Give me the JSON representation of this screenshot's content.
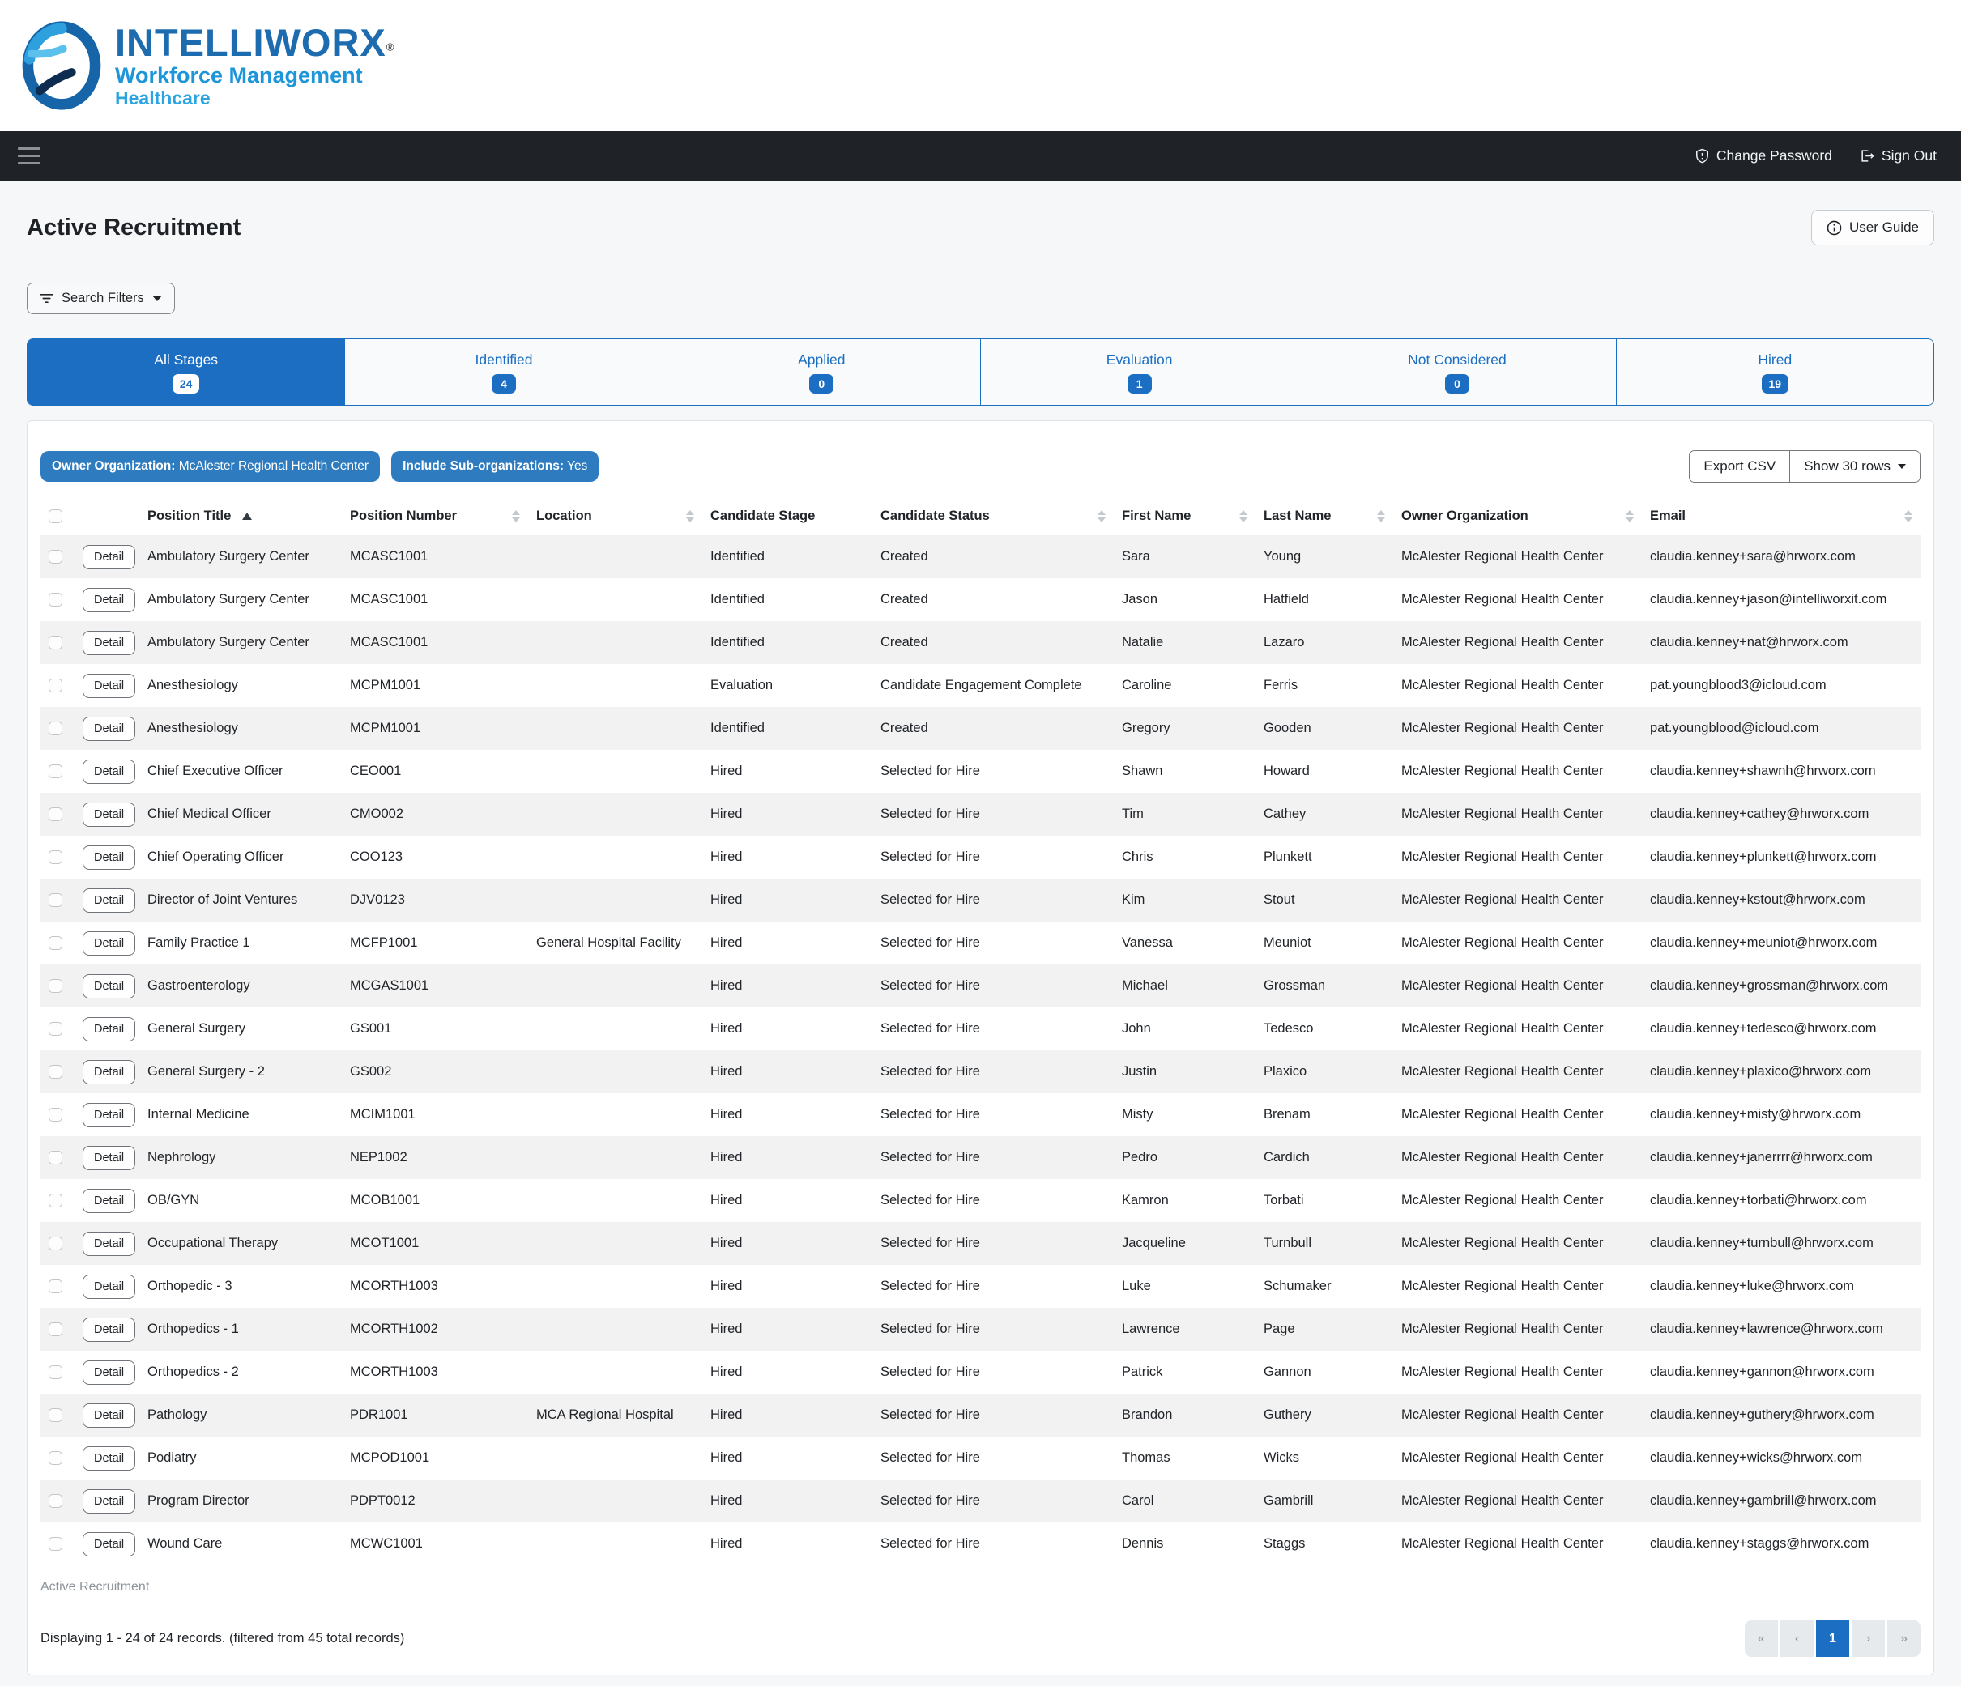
{
  "brand": {
    "name": "INTELLIWORX",
    "registered": "®",
    "tagline": "Workforce Management",
    "sub_tagline": "Healthcare"
  },
  "navbar": {
    "change_password": "Change Password",
    "sign_out": "Sign Out"
  },
  "page": {
    "title": "Active Recruitment",
    "user_guide": "User Guide",
    "search_filters": "Search Filters"
  },
  "tabs": [
    {
      "label": "All Stages",
      "count": "24",
      "active": true
    },
    {
      "label": "Identified",
      "count": "4",
      "active": false
    },
    {
      "label": "Applied",
      "count": "0",
      "active": false
    },
    {
      "label": "Evaluation",
      "count": "1",
      "active": false
    },
    {
      "label": "Not Considered",
      "count": "0",
      "active": false
    },
    {
      "label": "Hired",
      "count": "19",
      "active": false
    }
  ],
  "filters": [
    {
      "label": "Owner Organization",
      "value": "McAlester Regional Health Center"
    },
    {
      "label": "Include Sub-organizations",
      "value": "Yes"
    }
  ],
  "toolbar": {
    "export_csv": "Export CSV",
    "show_rows": "Show 30 rows"
  },
  "table": {
    "detail_label": "Detail",
    "columns": [
      {
        "label": "Position Title",
        "sort": "asc"
      },
      {
        "label": "Position Number",
        "sort": "both"
      },
      {
        "label": "Location",
        "sort": "both"
      },
      {
        "label": "Candidate Stage",
        "sort": "none"
      },
      {
        "label": "Candidate Status",
        "sort": "both"
      },
      {
        "label": "First Name",
        "sort": "both"
      },
      {
        "label": "Last Name",
        "sort": "both"
      },
      {
        "label": "Owner Organization",
        "sort": "both"
      },
      {
        "label": "Email",
        "sort": "both"
      }
    ],
    "rows": [
      {
        "position_title": "Ambulatory Surgery Center",
        "position_number": "MCASC1001",
        "location": "",
        "candidate_stage": "Identified",
        "candidate_status": "Created",
        "first_name": "Sara",
        "last_name": "Young",
        "owner_organization": "McAlester Regional Health Center",
        "email": "claudia.kenney+sara@hrworx.com"
      },
      {
        "position_title": "Ambulatory Surgery Center",
        "position_number": "MCASC1001",
        "location": "",
        "candidate_stage": "Identified",
        "candidate_status": "Created",
        "first_name": "Jason",
        "last_name": "Hatfield",
        "owner_organization": "McAlester Regional Health Center",
        "email": "claudia.kenney+jason@intelliworxit.com"
      },
      {
        "position_title": "Ambulatory Surgery Center",
        "position_number": "MCASC1001",
        "location": "",
        "candidate_stage": "Identified",
        "candidate_status": "Created",
        "first_name": "Natalie",
        "last_name": "Lazaro",
        "owner_organization": "McAlester Regional Health Center",
        "email": "claudia.kenney+nat@hrworx.com"
      },
      {
        "position_title": "Anesthesiology",
        "position_number": "MCPM1001",
        "location": "",
        "candidate_stage": "Evaluation",
        "candidate_status": "Candidate Engagement Complete",
        "first_name": "Caroline",
        "last_name": "Ferris",
        "owner_organization": "McAlester Regional Health Center",
        "email": "pat.youngblood3@icloud.com"
      },
      {
        "position_title": "Anesthesiology",
        "position_number": "MCPM1001",
        "location": "",
        "candidate_stage": "Identified",
        "candidate_status": "Created",
        "first_name": "Gregory",
        "last_name": "Gooden",
        "owner_organization": "McAlester Regional Health Center",
        "email": "pat.youngblood@icloud.com"
      },
      {
        "position_title": "Chief Executive Officer",
        "position_number": "CEO001",
        "location": "",
        "candidate_stage": "Hired",
        "candidate_status": "Selected for Hire",
        "first_name": "Shawn",
        "last_name": "Howard",
        "owner_organization": "McAlester Regional Health Center",
        "email": "claudia.kenney+shawnh@hrworx.com"
      },
      {
        "position_title": "Chief Medical Officer",
        "position_number": "CMO002",
        "location": "",
        "candidate_stage": "Hired",
        "candidate_status": "Selected for Hire",
        "first_name": "Tim",
        "last_name": "Cathey",
        "owner_organization": "McAlester Regional Health Center",
        "email": "claudia.kenney+cathey@hrworx.com"
      },
      {
        "position_title": "Chief Operating Officer",
        "position_number": "COO123",
        "location": "",
        "candidate_stage": "Hired",
        "candidate_status": "Selected for Hire",
        "first_name": "Chris",
        "last_name": "Plunkett",
        "owner_organization": "McAlester Regional Health Center",
        "email": "claudia.kenney+plunkett@hrworx.com"
      },
      {
        "position_title": "Director of Joint Ventures",
        "position_number": "DJV0123",
        "location": "",
        "candidate_stage": "Hired",
        "candidate_status": "Selected for Hire",
        "first_name": "Kim",
        "last_name": "Stout",
        "owner_organization": "McAlester Regional Health Center",
        "email": "claudia.kenney+kstout@hrworx.com"
      },
      {
        "position_title": "Family Practice 1",
        "position_number": "MCFP1001",
        "location": "General Hospital Facility",
        "candidate_stage": "Hired",
        "candidate_status": "Selected for Hire",
        "first_name": "Vanessa",
        "last_name": "Meuniot",
        "owner_organization": "McAlester Regional Health Center",
        "email": "claudia.kenney+meuniot@hrworx.com"
      },
      {
        "position_title": "Gastroenterology",
        "position_number": "MCGAS1001",
        "location": "",
        "candidate_stage": "Hired",
        "candidate_status": "Selected for Hire",
        "first_name": "Michael",
        "last_name": "Grossman",
        "owner_organization": "McAlester Regional Health Center",
        "email": "claudia.kenney+grossman@hrworx.com"
      },
      {
        "position_title": "General Surgery",
        "position_number": "GS001",
        "location": "",
        "candidate_stage": "Hired",
        "candidate_status": "Selected for Hire",
        "first_name": "John",
        "last_name": "Tedesco",
        "owner_organization": "McAlester Regional Health Center",
        "email": "claudia.kenney+tedesco@hrworx.com"
      },
      {
        "position_title": "General Surgery - 2",
        "position_number": "GS002",
        "location": "",
        "candidate_stage": "Hired",
        "candidate_status": "Selected for Hire",
        "first_name": "Justin",
        "last_name": "Plaxico",
        "owner_organization": "McAlester Regional Health Center",
        "email": "claudia.kenney+plaxico@hrworx.com"
      },
      {
        "position_title": "Internal Medicine",
        "position_number": "MCIM1001",
        "location": "",
        "candidate_stage": "Hired",
        "candidate_status": "Selected for Hire",
        "first_name": "Misty",
        "last_name": "Brenam",
        "owner_organization": "McAlester Regional Health Center",
        "email": "claudia.kenney+misty@hrworx.com"
      },
      {
        "position_title": "Nephrology",
        "position_number": "NEP1002",
        "location": "",
        "candidate_stage": "Hired",
        "candidate_status": "Selected for Hire",
        "first_name": "Pedro",
        "last_name": "Cardich",
        "owner_organization": "McAlester Regional Health Center",
        "email": "claudia.kenney+janerrrr@hrworx.com"
      },
      {
        "position_title": "OB/GYN",
        "position_number": "MCOB1001",
        "location": "",
        "candidate_stage": "Hired",
        "candidate_status": "Selected for Hire",
        "first_name": "Kamron",
        "last_name": "Torbati",
        "owner_organization": "McAlester Regional Health Center",
        "email": "claudia.kenney+torbati@hrworx.com"
      },
      {
        "position_title": "Occupational Therapy",
        "position_number": "MCOT1001",
        "location": "",
        "candidate_stage": "Hired",
        "candidate_status": "Selected for Hire",
        "first_name": "Jacqueline",
        "last_name": "Turnbull",
        "owner_organization": "McAlester Regional Health Center",
        "email": "claudia.kenney+turnbull@hrworx.com"
      },
      {
        "position_title": "Orthopedic - 3",
        "position_number": "MCORTH1003",
        "location": "",
        "candidate_stage": "Hired",
        "candidate_status": "Selected for Hire",
        "first_name": "Luke",
        "last_name": "Schumaker",
        "owner_organization": "McAlester Regional Health Center",
        "email": "claudia.kenney+luke@hrworx.com"
      },
      {
        "position_title": "Orthopedics - 1",
        "position_number": "MCORTH1002",
        "location": "",
        "candidate_stage": "Hired",
        "candidate_status": "Selected for Hire",
        "first_name": "Lawrence",
        "last_name": "Page",
        "owner_organization": "McAlester Regional Health Center",
        "email": "claudia.kenney+lawrence@hrworx.com"
      },
      {
        "position_title": "Orthopedics - 2",
        "position_number": "MCORTH1003",
        "location": "",
        "candidate_stage": "Hired",
        "candidate_status": "Selected for Hire",
        "first_name": "Patrick",
        "last_name": "Gannon",
        "owner_organization": "McAlester Regional Health Center",
        "email": "claudia.kenney+gannon@hrworx.com"
      },
      {
        "position_title": "Pathology",
        "position_number": "PDR1001",
        "location": "MCA Regional Hospital",
        "candidate_stage": "Hired",
        "candidate_status": "Selected for Hire",
        "first_name": "Brandon",
        "last_name": "Guthery",
        "owner_organization": "McAlester Regional Health Center",
        "email": "claudia.kenney+guthery@hrworx.com"
      },
      {
        "position_title": "Podiatry",
        "position_number": "MCPOD1001",
        "location": "",
        "candidate_stage": "Hired",
        "candidate_status": "Selected for Hire",
        "first_name": "Thomas",
        "last_name": "Wicks",
        "owner_organization": "McAlester Regional Health Center",
        "email": "claudia.kenney+wicks@hrworx.com"
      },
      {
        "position_title": "Program Director",
        "position_number": "PDPT0012",
        "location": "",
        "candidate_stage": "Hired",
        "candidate_status": "Selected for Hire",
        "first_name": "Carol",
        "last_name": "Gambrill",
        "owner_organization": "McAlester Regional Health Center",
        "email": "claudia.kenney+gambrill@hrworx.com"
      },
      {
        "position_title": "Wound Care",
        "position_number": "MCWC1001",
        "location": "",
        "candidate_stage": "Hired",
        "candidate_status": "Selected for Hire",
        "first_name": "Dennis",
        "last_name": "Staggs",
        "owner_organization": "McAlester Regional Health Center",
        "email": "claudia.kenney+staggs@hrworx.com"
      }
    ]
  },
  "footer": {
    "caption": "Active Recruitment",
    "summary": "Displaying 1 - 24 of 24 records. (filtered from 45 total records)",
    "pagination": [
      {
        "label": "«",
        "state": "disabled"
      },
      {
        "label": "‹",
        "state": "disabled"
      },
      {
        "label": "1",
        "state": "active"
      },
      {
        "label": "›",
        "state": "disabled"
      },
      {
        "label": "»",
        "state": "disabled"
      }
    ]
  },
  "colors": {
    "accent": "#1b6ec2",
    "navbar_bg": "#1f2327",
    "pill": "#2e7cbf",
    "stripe": "#f2f2f2"
  }
}
